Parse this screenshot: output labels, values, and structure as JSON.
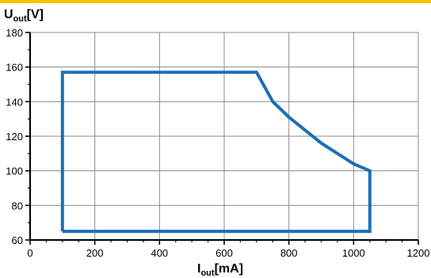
{
  "accent_color": "#F2C300",
  "line_color": "#1A6FB5",
  "chart_data": {
    "type": "line",
    "x_axis": {
      "title_main": "I",
      "title_sub": "out",
      "title_unit": "[mA]",
      "min": 0,
      "max": 1200,
      "ticks": [
        0,
        200,
        400,
        600,
        800,
        1000,
        1200
      ]
    },
    "y_axis": {
      "title_main": "U",
      "title_sub": "out",
      "title_unit": "[V]",
      "min": 60,
      "max": 180,
      "ticks": [
        60,
        80,
        100,
        120,
        140,
        160,
        180
      ]
    },
    "grid": true,
    "legend": "none",
    "series": [
      {
        "closed": true,
        "points": [
          {
            "x": 100,
            "y": 65
          },
          {
            "x": 100,
            "y": 157
          },
          {
            "x": 700,
            "y": 157
          },
          {
            "x": 750,
            "y": 140
          },
          {
            "x": 800,
            "y": 131
          },
          {
            "x": 900,
            "y": 116
          },
          {
            "x": 1000,
            "y": 104
          },
          {
            "x": 1050,
            "y": 100
          },
          {
            "x": 1050,
            "y": 65
          },
          {
            "x": 100,
            "y": 65
          }
        ]
      }
    ]
  }
}
